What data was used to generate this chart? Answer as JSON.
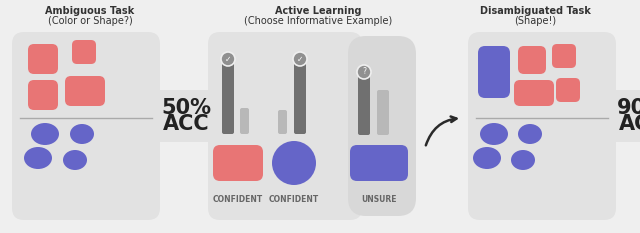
{
  "bg_color": "#efefef",
  "panel_color": "#e2e2e2",
  "panel_color_unsure": "#d8d8d8",
  "acc_bubble_color": "#e2e2e2",
  "red_color": "#e87575",
  "blue_color": "#6565c8",
  "dark_gray": "#707070",
  "mid_gray": "#909090",
  "light_gray": "#b8b8b8",
  "divider_color": "#aaaaaa",
  "arrow_color": "#2a2a2a",
  "text_dark": "#222222",
  "text_title": "#333333",
  "text_label": "#666666",
  "title1_line1": "Ambiguous Task",
  "title1_line2": "(Color or Shape?)",
  "title2_line1": "Active Learning",
  "title2_line2": "(Choose Informative Example)",
  "title3_line1": "Disambiguated Task",
  "title3_line2": "(Shape!)",
  "label1": "CONFIDENT",
  "label2": "CONFIDENT",
  "label3": "UNSURE"
}
